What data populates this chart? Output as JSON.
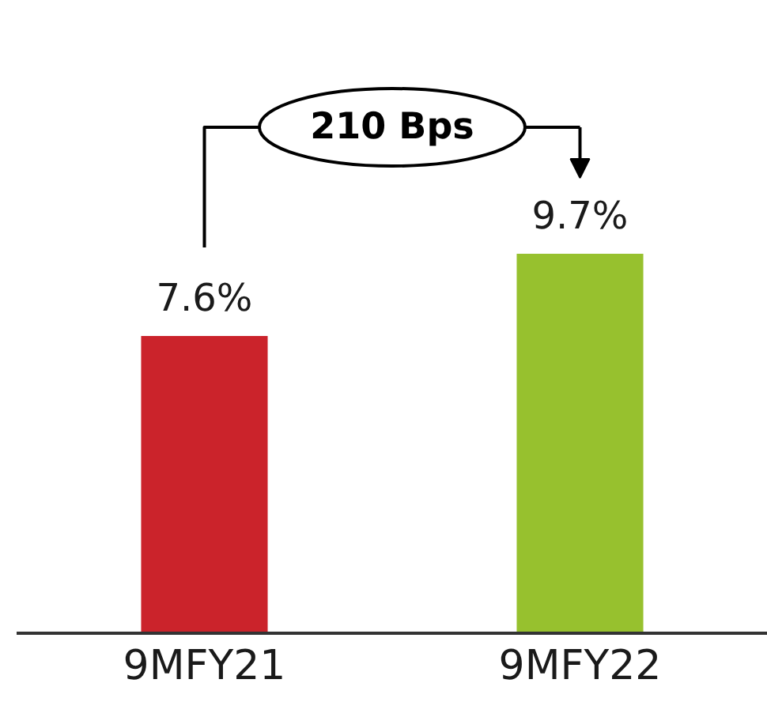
{
  "chart_data": {
    "type": "bar",
    "categories": [
      "9MFY21",
      "9MFY22"
    ],
    "values": [
      7.6,
      9.7
    ],
    "colors": [
      "#cb232b",
      "#97c12e"
    ],
    "value_labels": [
      "7.6%",
      "9.7%"
    ],
    "annotations": [
      "210 Bps"
    ],
    "tick_labels": "x"
  }
}
